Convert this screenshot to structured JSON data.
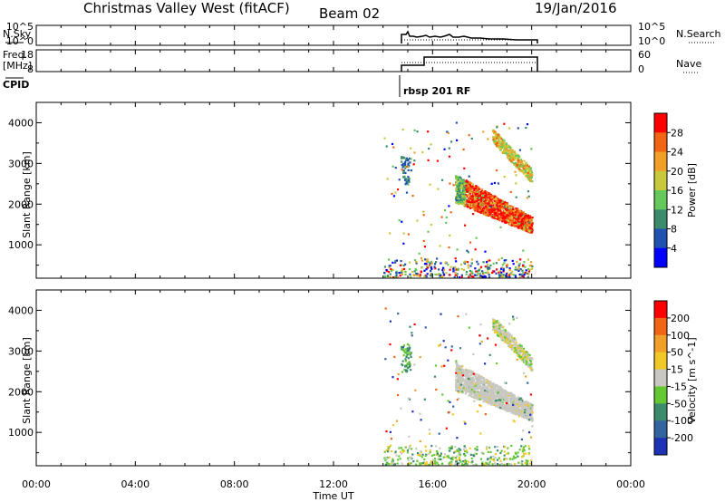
{
  "header": {
    "station": "Christmas Valley West (fitACF)",
    "beam": "Beam 02",
    "date": "19/Jan/2016"
  },
  "panels": {
    "nsky_label": "N.Sky",
    "nsearch_label": "N.Search",
    "nsky_ticks": [
      "10^5",
      "10^0"
    ],
    "nsky_right_ticks": [
      "10^5",
      "10^0"
    ],
    "freq_label_1": "Freq.",
    "freq_label_2": "[MHz]",
    "freq_ticks": [
      "18",
      "8"
    ],
    "nave_ticks": [
      "60",
      "0"
    ],
    "nave_label": "Nave",
    "cpid_label": "CPID",
    "cpid_value": "rbsp 201 RF"
  },
  "chart_data": [
    {
      "type": "heatmap",
      "name": "power",
      "ylabel": "Slant Range [km]",
      "y_ticks": [
        "1000",
        "2000",
        "3000",
        "4000"
      ],
      "ylim": [
        180,
        4500
      ],
      "colorbar_label": "Power [dB]",
      "colorbar_ticks": [
        "4",
        "8",
        "12",
        "16",
        "20",
        "24",
        "28"
      ],
      "colors": [
        "#0000ff",
        "#2050b0",
        "#3c8c6c",
        "#64c85a",
        "#c8c83c",
        "#f0a028",
        "#f06414",
        "#ff0000"
      ]
    },
    {
      "type": "heatmap",
      "name": "velocity",
      "ylabel": "Slant Range [km]",
      "y_ticks": [
        "1000",
        "2000",
        "3000",
        "4000"
      ],
      "ylim": [
        180,
        4500
      ],
      "colorbar_label": "Velocity [m s^-1]",
      "colorbar_ticks": [
        "200",
        "100",
        "50",
        "15",
        "-15",
        "-50",
        "-100",
        "-200"
      ],
      "colors": [
        "#1e32b4",
        "#3264a0",
        "#3c8c6c",
        "#64c832",
        "#c8c8c0",
        "#f0c828",
        "#f0a028",
        "#f06414",
        "#ff0000"
      ]
    }
  ],
  "x_axis": {
    "label": "Time UT",
    "ticks": [
      "00:00",
      "04:00",
      "08:00",
      "12:00",
      "16:00",
      "20:00",
      "00:00"
    ]
  }
}
